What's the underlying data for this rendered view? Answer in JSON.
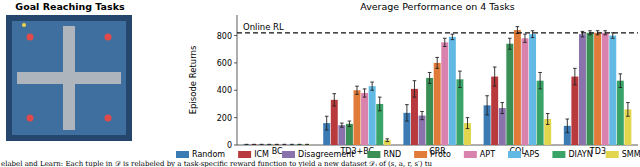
{
  "panel_title": "Goal Reaching Tasks",
  "caption": "elabel and Learn: Each tuple in 𝒟 is relabeled by a task-specific reward function to yield a new dataset 𝒟ᵢ of (s, a, r, s′) tu",
  "chart_data": {
    "type": "bar",
    "title": "Average Performance on 4 Tasks",
    "y_label": "Episode Returns",
    "categories": [
      "BC",
      "TD3+BC",
      "CRR",
      "CQL",
      "TD3"
    ],
    "ylim": [
      0,
      950
    ],
    "yticks": [
      0,
      200,
      400,
      600,
      800
    ],
    "grid": false,
    "legend": "bottom",
    "annotations": [
      {
        "text": "Online RL",
        "value": 820
      }
    ],
    "series": [
      {
        "name": "Random",
        "color": "#3b7bb4",
        "values": [
          3,
          160,
          235,
          290,
          140
        ],
        "errors": [
          2,
          50,
          60,
          70,
          50
        ]
      },
      {
        "name": "ICM",
        "color": "#b83a3c",
        "values": [
          3,
          330,
          410,
          500,
          500
        ],
        "errors": [
          2,
          45,
          60,
          70,
          60
        ]
      },
      {
        "name": "Disagreement",
        "color": "#8a72ad",
        "values": [
          3,
          145,
          215,
          270,
          810
        ],
        "errors": [
          2,
          15,
          30,
          40,
          20
        ]
      },
      {
        "name": "RND",
        "color": "#3a8f55",
        "values": [
          3,
          155,
          490,
          740,
          820
        ],
        "errors": [
          2,
          20,
          40,
          40,
          15
        ]
      },
      {
        "name": "Proto",
        "color": "#e07b39",
        "values": [
          3,
          400,
          600,
          840,
          820
        ],
        "errors": [
          2,
          30,
          40,
          25,
          15
        ]
      },
      {
        "name": "APT",
        "color": "#d982ad",
        "values": [
          3,
          380,
          750,
          780,
          820
        ],
        "errors": [
          2,
          30,
          30,
          30,
          15
        ]
      },
      {
        "name": "APS",
        "color": "#62b9e3",
        "values": [
          3,
          430,
          790,
          810,
          800
        ],
        "errors": [
          2,
          30,
          20,
          25,
          20
        ]
      },
      {
        "name": "DIAYN",
        "color": "#3aa468",
        "values": [
          3,
          300,
          480,
          470,
          470
        ],
        "errors": [
          2,
          50,
          60,
          60,
          50
        ]
      },
      {
        "name": "SMM",
        "color": "#e3d64f",
        "values": [
          3,
          35,
          160,
          190,
          260
        ],
        "errors": [
          2,
          10,
          40,
          40,
          50
        ]
      }
    ]
  }
}
